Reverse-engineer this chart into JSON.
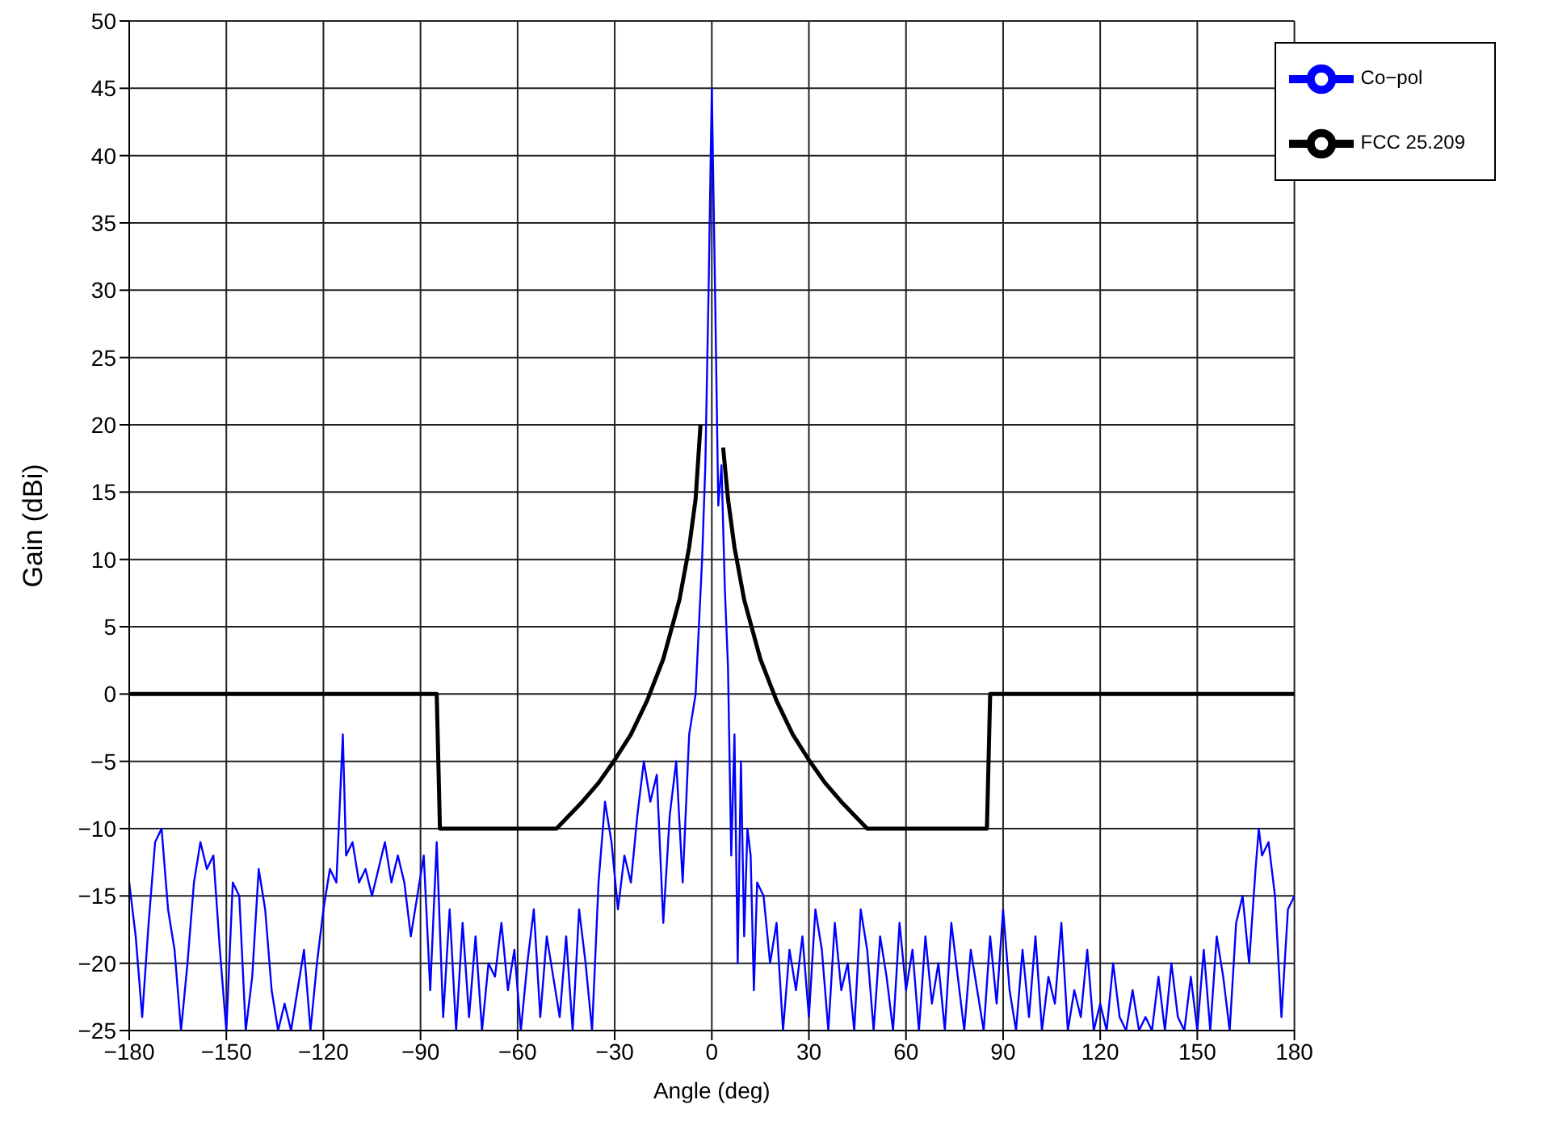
{
  "chart_data": {
    "type": "line",
    "xlabel": "Angle (deg)",
    "ylabel": "Gain (dBi)",
    "xlim": [
      -180,
      180
    ],
    "ylim": [
      -25,
      50
    ],
    "xticks": [
      {
        "value": -180,
        "label": "−180"
      },
      {
        "value": -150,
        "label": "−150"
      },
      {
        "value": -120,
        "label": "−120"
      },
      {
        "value": -90,
        "label": "−90"
      },
      {
        "value": -60,
        "label": "−60"
      },
      {
        "value": -30,
        "label": "−30"
      },
      0,
      30,
      60,
      90,
      120,
      150,
      180
    ],
    "yticks": [
      {
        "value": -25,
        "label": "−25"
      },
      {
        "value": -20,
        "label": "−20"
      },
      {
        "value": -15,
        "label": "−15"
      },
      {
        "value": -10,
        "label": "−10"
      },
      {
        "value": -5,
        "label": "−5"
      },
      0,
      5,
      10,
      15,
      20,
      25,
      30,
      35,
      40,
      45,
      50
    ],
    "grid": true,
    "legend": "top right",
    "marker": "none",
    "line_style": "solid",
    "series": [
      {
        "name": "Co−pol",
        "color": "#0000ff",
        "x": [
          -180,
          -178,
          -176,
          -174,
          -172,
          -170,
          -168,
          -166,
          -164,
          -162,
          -160,
          -158,
          -156,
          -154,
          -152,
          -150,
          -148,
          -146,
          -144,
          -142,
          -140,
          -138,
          -136,
          -134,
          -132,
          -130,
          -128,
          -126,
          -124,
          -122,
          -120,
          -118,
          -116,
          -114,
          -113,
          -111,
          -109,
          -107,
          -105,
          -103,
          -101,
          -99,
          -97,
          -95,
          -93,
          -91,
          -89,
          -87,
          -85,
          -83,
          -81,
          -79,
          -77,
          -75,
          -73,
          -71,
          -69,
          -67,
          -65,
          -63,
          -61,
          -59,
          -57,
          -55,
          -53,
          -51,
          -49,
          -47,
          -45,
          -43,
          -41,
          -39,
          -37,
          -35,
          -33,
          -31,
          -29,
          -27,
          -25,
          -23,
          -21,
          -19,
          -17,
          -15,
          -13,
          -11,
          -9,
          -7,
          -5,
          -4,
          -3,
          -2,
          -1,
          0,
          1,
          2,
          3,
          4,
          5,
          6,
          7,
          8,
          9,
          10,
          11,
          12,
          13,
          14,
          16,
          18,
          20,
          22,
          24,
          26,
          28,
          30,
          32,
          34,
          36,
          38,
          40,
          42,
          44,
          46,
          48,
          50,
          52,
          54,
          56,
          58,
          60,
          62,
          64,
          66,
          68,
          70,
          72,
          74,
          76,
          78,
          80,
          82,
          84,
          86,
          88,
          90,
          92,
          94,
          96,
          98,
          100,
          102,
          104,
          106,
          108,
          110,
          112,
          114,
          116,
          118,
          120,
          122,
          124,
          126,
          128,
          130,
          132,
          134,
          136,
          138,
          140,
          142,
          144,
          146,
          148,
          150,
          152,
          154,
          156,
          158,
          160,
          162,
          164,
          166,
          168,
          169,
          170,
          172,
          174,
          176,
          178,
          180
        ],
        "values": [
          -14,
          -18,
          -24,
          -17,
          -11,
          -10,
          -16,
          -19,
          -25,
          -20,
          -14,
          -11,
          -13,
          -12,
          -19,
          -25,
          -14,
          -15,
          -25,
          -21,
          -13,
          -16,
          -22,
          -25,
          -23,
          -25,
          -22,
          -19,
          -25,
          -20,
          -16,
          -13,
          -14,
          -3,
          -12,
          -11,
          -14,
          -13,
          -15,
          -13,
          -11,
          -14,
          -12,
          -14,
          -18,
          -15,
          -12,
          -22,
          -11,
          -24,
          -16,
          -25,
          -17,
          -24,
          -18,
          -25,
          -20,
          -21,
          -17,
          -22,
          -19,
          -25,
          -20,
          -16,
          -24,
          -18,
          -21,
          -24,
          -18,
          -25,
          -16,
          -20,
          -25,
          -14,
          -8,
          -11,
          -16,
          -12,
          -14,
          -9,
          -5,
          -8,
          -6,
          -17,
          -9,
          -5,
          -14,
          -3,
          0,
          5,
          10,
          17,
          30,
          45,
          30,
          14,
          17,
          8,
          2,
          -12,
          -3,
          -20,
          -5,
          -18,
          -10,
          -12,
          -22,
          -14,
          -15,
          -20,
          -17,
          -25,
          -19,
          -22,
          -18,
          -24,
          -16,
          -19,
          -25,
          -17,
          -22,
          -20,
          -25,
          -16,
          -19,
          -25,
          -18,
          -21,
          -25,
          -17,
          -22,
          -19,
          -25,
          -18,
          -23,
          -20,
          -25,
          -17,
          -21,
          -25,
          -19,
          -22,
          -25,
          -18,
          -23,
          -16,
          -22,
          -25,
          -19,
          -24,
          -18,
          -25,
          -21,
          -23,
          -17,
          -25,
          -22,
          -24,
          -19,
          -25,
          -23,
          -25,
          -20,
          -24,
          -25,
          -22,
          -25,
          -24,
          -25,
          -21,
          -25,
          -20,
          -24,
          -25,
          -21,
          -25,
          -19,
          -25,
          -18,
          -21,
          -25,
          -17,
          -15,
          -20,
          -13,
          -10,
          -12,
          -11,
          -15,
          -24,
          -16,
          -15
        ]
      },
      {
        "name": "FCC 25.209",
        "color": "#000000",
        "x": [
          -180,
          -85,
          -84,
          -48,
          -40,
          -35,
          -30,
          -25,
          -20,
          -15,
          -10,
          -7,
          -5,
          -3.5,
          0,
          3.5,
          5,
          7,
          10,
          15,
          20,
          25,
          30,
          35,
          40,
          48,
          85,
          86,
          180
        ],
        "values": [
          0,
          0,
          -10,
          -10,
          -8,
          -6.6,
          -4.9,
          -3,
          -0.5,
          2.6,
          7,
          10.9,
          14.5,
          20,
          null,
          18.3,
          14.5,
          10.9,
          7,
          2.6,
          -0.5,
          -3,
          -4.9,
          -6.6,
          -8,
          -10,
          -10,
          0,
          0
        ]
      }
    ]
  }
}
